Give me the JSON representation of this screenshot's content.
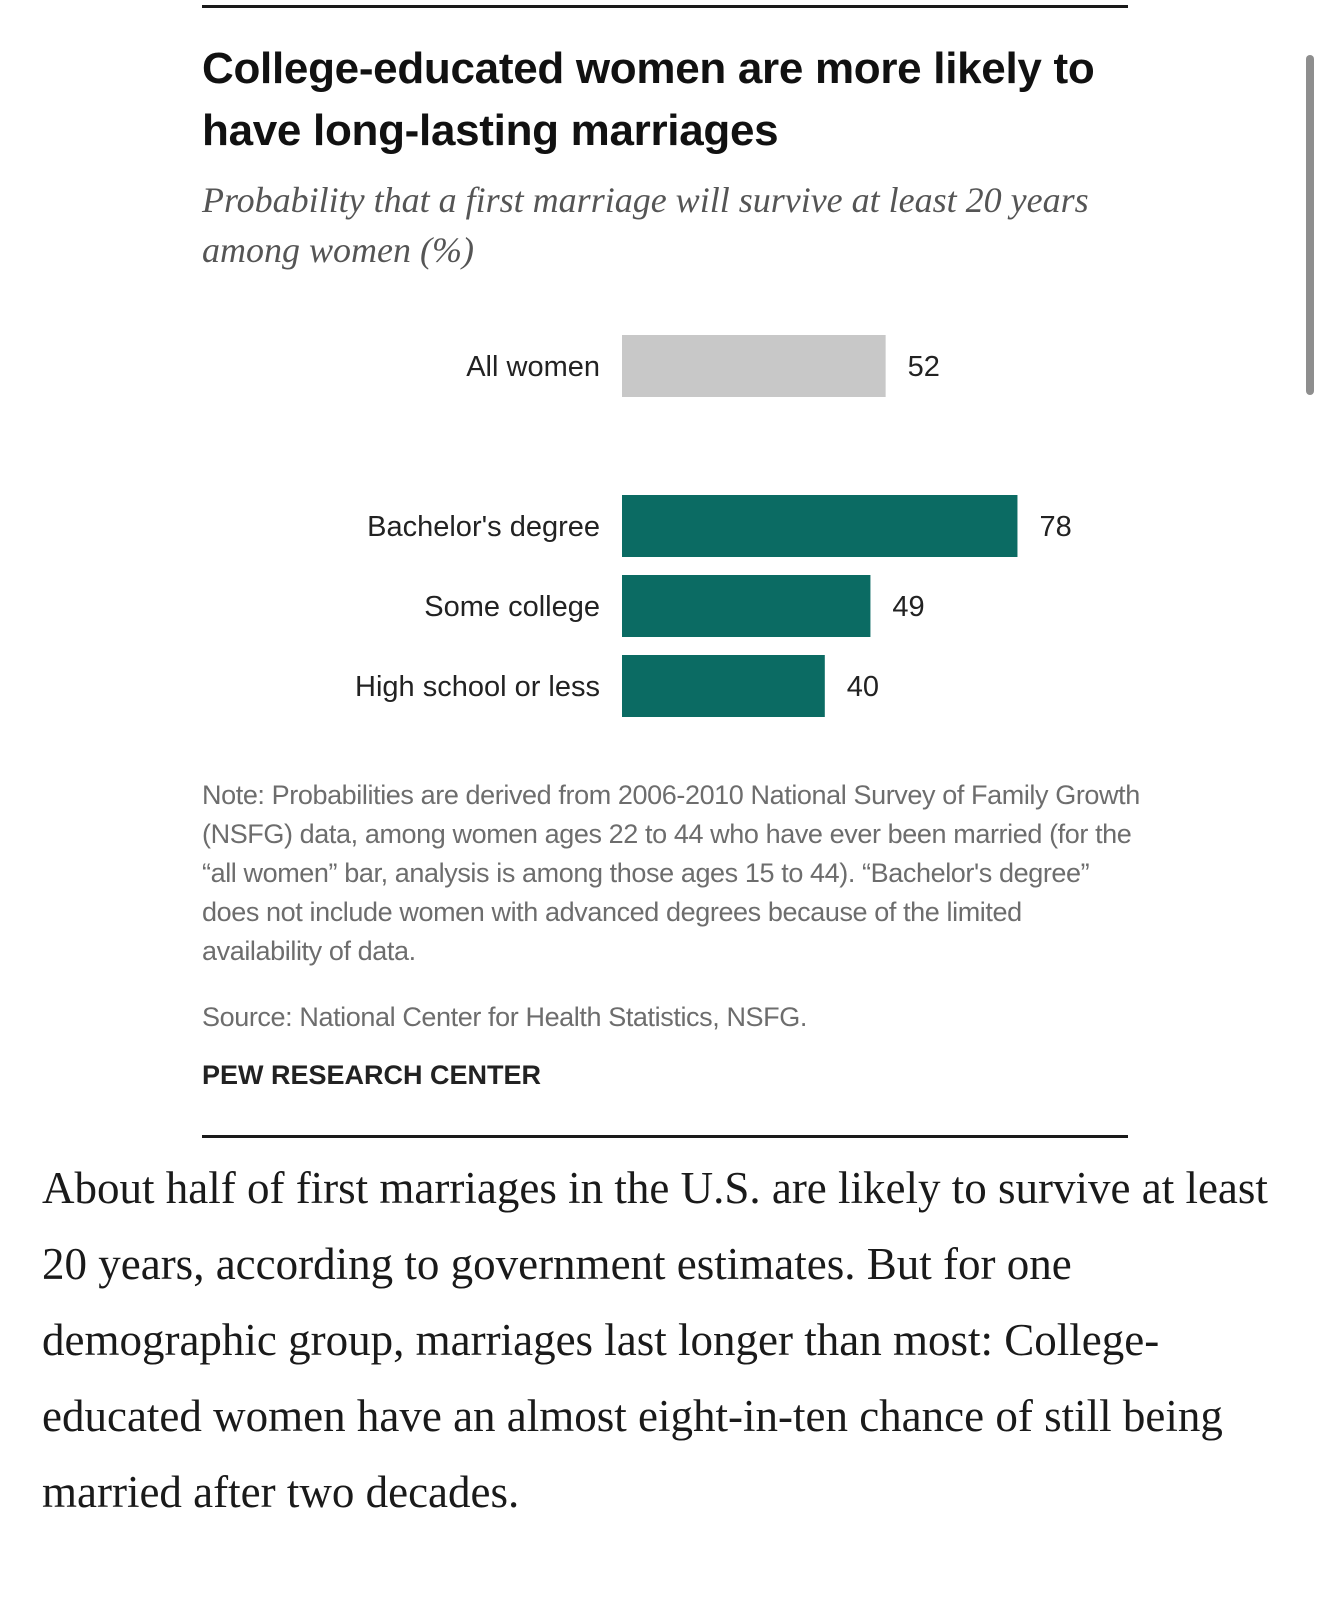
{
  "chart_data": {
    "type": "bar",
    "orientation": "horizontal",
    "title": "College-educated women are more likely to have long-lasting marriages",
    "subtitle": "Probability that a first marriage will survive at least 20 years among women (%)",
    "categories": [
      "All women",
      "Bachelor's degree",
      "Some college",
      "High school or less"
    ],
    "values": [
      52,
      78,
      49,
      40
    ],
    "value_labels": [
      "52",
      "78",
      "49",
      "40"
    ],
    "bar_colors": [
      "#c8c8c8",
      "#0b6b63",
      "#0b6b63",
      "#0b6b63"
    ],
    "xlim": [
      0,
      100
    ],
    "grid": false,
    "xlabel": "",
    "ylabel": "",
    "note": "Note: Probabilities are derived from 2006-2010 National Survey of Family Growth (NSFG) data, among women ages 22 to 44 who have ever been married (for the “all women” bar, analysis is among those ages 15 to 44). “Bachelor's degree” does not include women with advanced degrees because of the limited availability of data.",
    "source": "Source: National Center for Health Statistics, NSFG.",
    "organization": "PEW RESEARCH CENTER"
  },
  "article": {
    "paragraph": "About half of first marriages in the U.S. are likely to survive at least 20 years, according to government estimates. But for one demographic group, marriages last longer than most: College-educated women have an almost eight-in-ten chance of still being married after two decades."
  }
}
